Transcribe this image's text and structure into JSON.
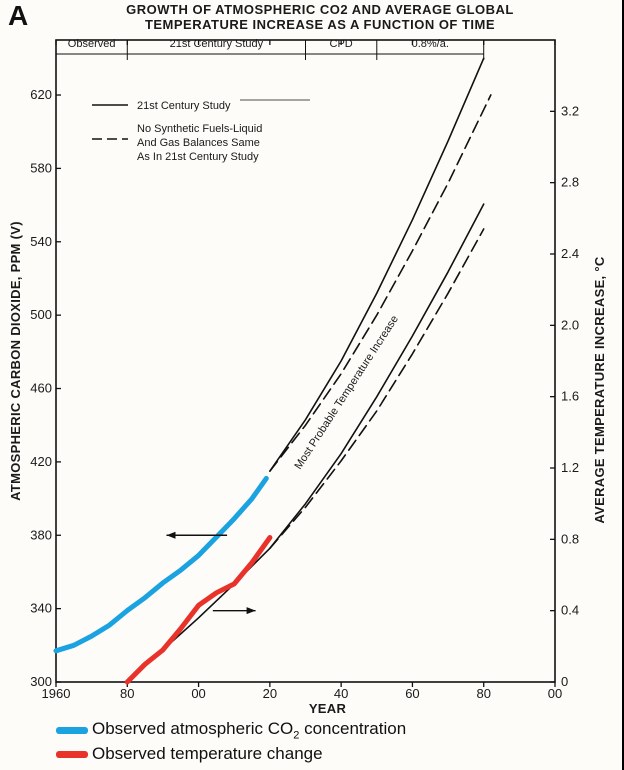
{
  "panel_letter": "A",
  "title_line1": "GROWTH OF ATMOSPHERIC CO2 AND AVERAGE GLOBAL",
  "title_line2": "TEMPERATURE INCREASE AS A FUNCTION OF TIME",
  "bottom_legend": {
    "co2_prefix": "Observed atmospheric CO",
    "co2_sub": "2",
    "co2_suffix": " concentration",
    "temp": "Observed temperature change",
    "co2_color": "#1aa3e0",
    "temp_color": "#e8322a"
  },
  "chart_data": {
    "type": "line",
    "title": "GROWTH OF ATMOSPHERIC CO2 AND AVERAGE GLOBAL TEMPERATURE INCREASE AS A FUNCTION OF TIME",
    "xlabel": "YEAR",
    "ylabel_left": "ATMOSPHERIC CARBON DIOXIDE, PPM (V)",
    "ylabel_right": "AVERAGE TEMPERATURE INCREASE, °C",
    "xlim": [
      1960,
      2100
    ],
    "ylim_left": [
      300,
      650
    ],
    "ylim_right": [
      0,
      3.6
    ],
    "x_ticks": [
      1960,
      1980,
      2000,
      2020,
      2040,
      2060,
      2080,
      2100
    ],
    "x_tick_labels": [
      "1960",
      "80",
      "00",
      "20",
      "40",
      "60",
      "80",
      "00"
    ],
    "y_left_ticks": [
      300,
      340,
      380,
      420,
      460,
      500,
      540,
      580,
      620
    ],
    "y_right_ticks": [
      0,
      0.4,
      0.8,
      1.2,
      1.6,
      2.0,
      2.4,
      2.8,
      3.2
    ],
    "y_right_tick_labels": [
      "0",
      "0.4",
      "0.8",
      "1.2",
      "1.6",
      "2.0",
      "2.4",
      "2.8",
      "3.2"
    ],
    "periods": [
      {
        "label": "Observed",
        "x": [
          1960,
          1980
        ]
      },
      {
        "label": "21st Century Study",
        "x": [
          1980,
          2030
        ]
      },
      {
        "label": "CPD",
        "x": [
          2030,
          2050
        ]
      },
      {
        "label": "0.8%/a.",
        "x": [
          2050,
          2080
        ]
      }
    ],
    "annotation": "Most Probable Temperature Increase",
    "legend_entries": [
      {
        "label": "21st Century Study",
        "style": "solid"
      },
      {
        "label": "No Synthetic Fuels-Liquid",
        "style": "dashed"
      },
      {
        "label": "And Gas Balances Same",
        "style": "none"
      },
      {
        "label": "As In 21st Century Study",
        "style": "none"
      }
    ],
    "series": [
      {
        "name": "21st Century Study",
        "axis": "left",
        "style": "solid",
        "x": [
          2020,
          2030,
          2040,
          2050,
          2060,
          2070,
          2080
        ],
        "y": [
          415,
          443,
          475,
          512,
          552,
          595,
          640
        ]
      },
      {
        "name": "No Synthetic Fuels-Liquid And Gas Balances Same As In 21st Century Study",
        "axis": "left",
        "style": "dashed",
        "x": [
          2020,
          2030,
          2040,
          2050,
          2060,
          2070,
          2080,
          2082
        ],
        "y": [
          415,
          440,
          468,
          500,
          535,
          572,
          612,
          620
        ]
      },
      {
        "name": "Most Probable Temperature Increase",
        "axis": "right",
        "style": "solid",
        "x": [
          1980,
          1990,
          2000,
          2010,
          2020,
          2030,
          2040,
          2050,
          2060,
          2070,
          2080
        ],
        "y": [
          0.0,
          0.18,
          0.36,
          0.55,
          0.75,
          1.0,
          1.28,
          1.6,
          1.94,
          2.3,
          2.68
        ]
      },
      {
        "name": "Most Probable Temperature Increase (no synthetic fuels)",
        "axis": "right",
        "style": "dashed",
        "x": [
          2020,
          2030,
          2040,
          2050,
          2060,
          2070,
          2080
        ],
        "y": [
          0.75,
          0.98,
          1.24,
          1.52,
          1.84,
          2.18,
          2.54
        ]
      },
      {
        "name": "Observed atmospheric CO2 concentration",
        "axis": "left",
        "style": "thick",
        "color": "#1aa3e0",
        "x": [
          1960,
          1965,
          1970,
          1975,
          1980,
          1985,
          1990,
          1995,
          2000,
          2005,
          2010,
          2015,
          2019
        ],
        "y": [
          317,
          320,
          325,
          331,
          339,
          346,
          354,
          361,
          369,
          379,
          389,
          400,
          411
        ]
      },
      {
        "name": "Observed temperature change",
        "axis": "right",
        "style": "thick",
        "color": "#e8322a",
        "x": [
          1980,
          1985,
          1990,
          1995,
          2000,
          2005,
          2010,
          2015,
          2020
        ],
        "y": [
          0.0,
          0.1,
          0.18,
          0.3,
          0.43,
          0.5,
          0.55,
          0.67,
          0.81
        ]
      }
    ],
    "arrows": [
      {
        "direction": "left",
        "x_from": 2008,
        "x_to": 1991,
        "y": 380,
        "axis": "left"
      },
      {
        "direction": "right",
        "x_from": 2004,
        "x_to": 2016,
        "y": 0.4,
        "axis": "right"
      }
    ],
    "grid": false,
    "legend_position": "top-left"
  }
}
